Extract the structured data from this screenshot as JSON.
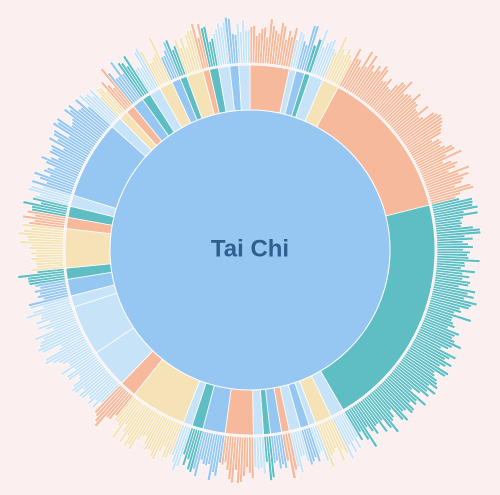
{
  "colors": {
    "background": "#fbefef",
    "blue": "#96c7f2",
    "light_blue": "#c7e3f8",
    "teal": "#5fbec4",
    "salmon": "#f7b99b",
    "cream": "#f5e2b6",
    "center_text": "#2d5f8f",
    "stroke": "#ffffff"
  },
  "chart_data": {
    "type": "sunburst",
    "root": {
      "name": "Tai Chi",
      "color": "blue"
    },
    "middle_ring": [
      {
        "value": 3.5,
        "color": "salmon"
      },
      {
        "value": 0.6,
        "color": "light_blue"
      },
      {
        "value": 0.8,
        "color": "blue"
      },
      {
        "value": 0.5,
        "color": "teal"
      },
      {
        "value": 1.2,
        "color": "light_blue"
      },
      {
        "value": 1.5,
        "color": "cream"
      },
      {
        "value": 13.5,
        "color": "salmon"
      },
      {
        "value": 21.0,
        "color": "teal"
      },
      {
        "value": 1.2,
        "color": "light_blue"
      },
      {
        "value": 1.5,
        "color": "cream"
      },
      {
        "value": 0.6,
        "color": "light_blue"
      },
      {
        "value": 0.8,
        "color": "blue"
      },
      {
        "value": 1.0,
        "color": "light_blue"
      },
      {
        "value": 0.7,
        "color": "salmon"
      },
      {
        "value": 1.0,
        "color": "blue"
      },
      {
        "value": 0.6,
        "color": "teal"
      },
      {
        "value": 0.9,
        "color": "light_blue"
      },
      {
        "value": 2.5,
        "color": "salmon"
      },
      {
        "value": 2.0,
        "color": "blue"
      },
      {
        "value": 1.0,
        "color": "teal"
      },
      {
        "value": 0.8,
        "color": "light_blue"
      },
      {
        "value": 5.0,
        "color": "cream"
      },
      {
        "value": 1.5,
        "color": "salmon"
      },
      {
        "value": 3.5,
        "color": "light_blue"
      },
      {
        "value": 4.5,
        "color": "light_blue"
      },
      {
        "value": 1.0,
        "color": "light_blue"
      },
      {
        "value": 1.5,
        "color": "blue"
      },
      {
        "value": 1.0,
        "color": "teal"
      },
      {
        "value": 3.5,
        "color": "cream"
      },
      {
        "value": 1.0,
        "color": "salmon"
      },
      {
        "value": 1.0,
        "color": "teal"
      },
      {
        "value": 1.0,
        "color": "light_blue"
      },
      {
        "value": 7.0,
        "color": "blue"
      },
      {
        "value": 1.0,
        "color": "light_blue"
      },
      {
        "value": 0.8,
        "color": "cream"
      },
      {
        "value": 0.8,
        "color": "salmon"
      },
      {
        "value": 1.0,
        "color": "blue"
      },
      {
        "value": 0.8,
        "color": "teal"
      },
      {
        "value": 1.0,
        "color": "light_blue"
      },
      {
        "value": 1.2,
        "color": "cream"
      },
      {
        "value": 0.8,
        "color": "blue"
      },
      {
        "value": 0.6,
        "color": "teal"
      },
      {
        "value": 1.5,
        "color": "cream"
      },
      {
        "value": 0.6,
        "color": "salmon"
      },
      {
        "value": 0.8,
        "color": "teal"
      },
      {
        "value": 1.0,
        "color": "light_blue"
      },
      {
        "value": 0.8,
        "color": "blue"
      },
      {
        "value": 1.0,
        "color": "light_blue"
      }
    ]
  }
}
